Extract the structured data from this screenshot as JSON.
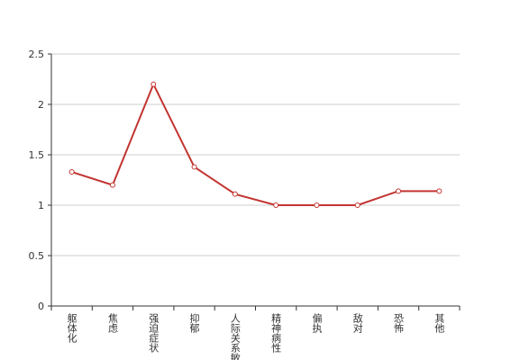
{
  "chart_data": {
    "type": "line",
    "categories": [
      "躯体化",
      "焦虑",
      "强迫症状",
      "抑郁",
      "人际关系敏感",
      "精神病性",
      "偏执",
      "敌对",
      "恐怖",
      "其他"
    ],
    "values": [
      1.33,
      1.2,
      2.2,
      1.38,
      1.11,
      1,
      1,
      1,
      1.14,
      1.14
    ],
    "color": "#c23531",
    "ylim": [
      0,
      2.5
    ],
    "yticks": [
      0,
      0.5,
      1,
      1.5,
      2,
      2.5
    ],
    "grid": true
  }
}
